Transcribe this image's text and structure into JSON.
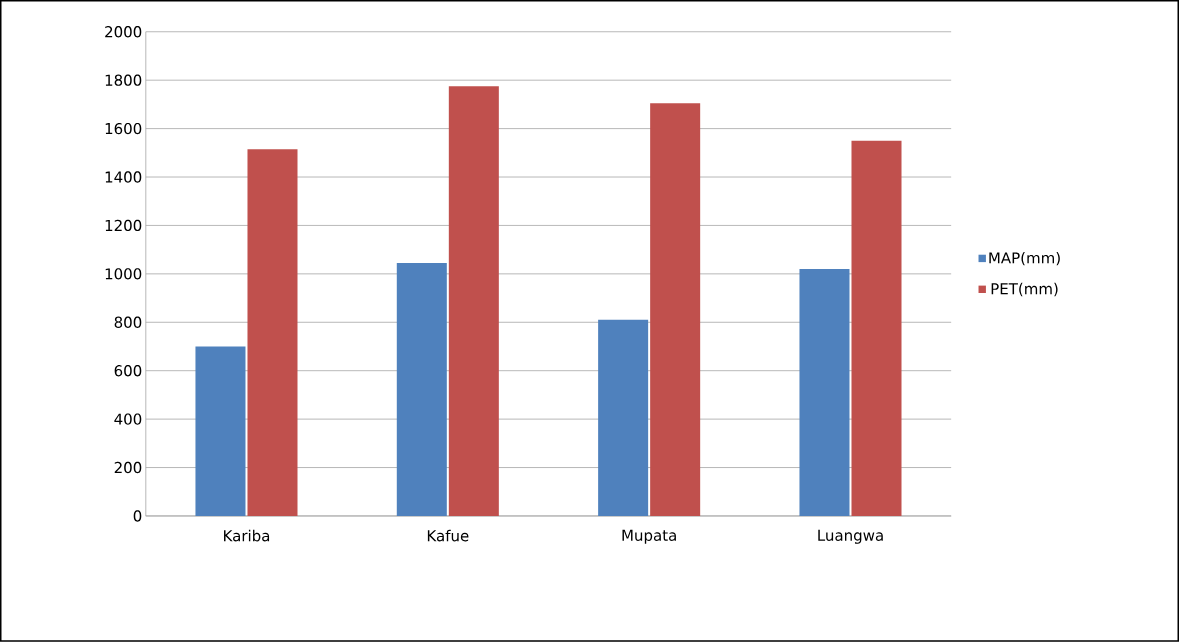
{
  "chart_data": {
    "type": "bar",
    "categories": [
      "Kariba",
      "Kafue",
      "Mupata",
      "Luangwa"
    ],
    "series": [
      {
        "name": "MAP(mm)",
        "color": "#4f81bd",
        "values": [
          700,
          1045,
          810,
          1020
        ]
      },
      {
        "name": "PET(mm)",
        "color": "#c0504d",
        "values": [
          1515,
          1775,
          1705,
          1550
        ]
      }
    ],
    "ylim": [
      0,
      2000
    ],
    "yticks": [
      0,
      200,
      400,
      600,
      800,
      1000,
      1200,
      1400,
      1600,
      1800,
      2000
    ],
    "grid": "y",
    "legend": "right"
  }
}
